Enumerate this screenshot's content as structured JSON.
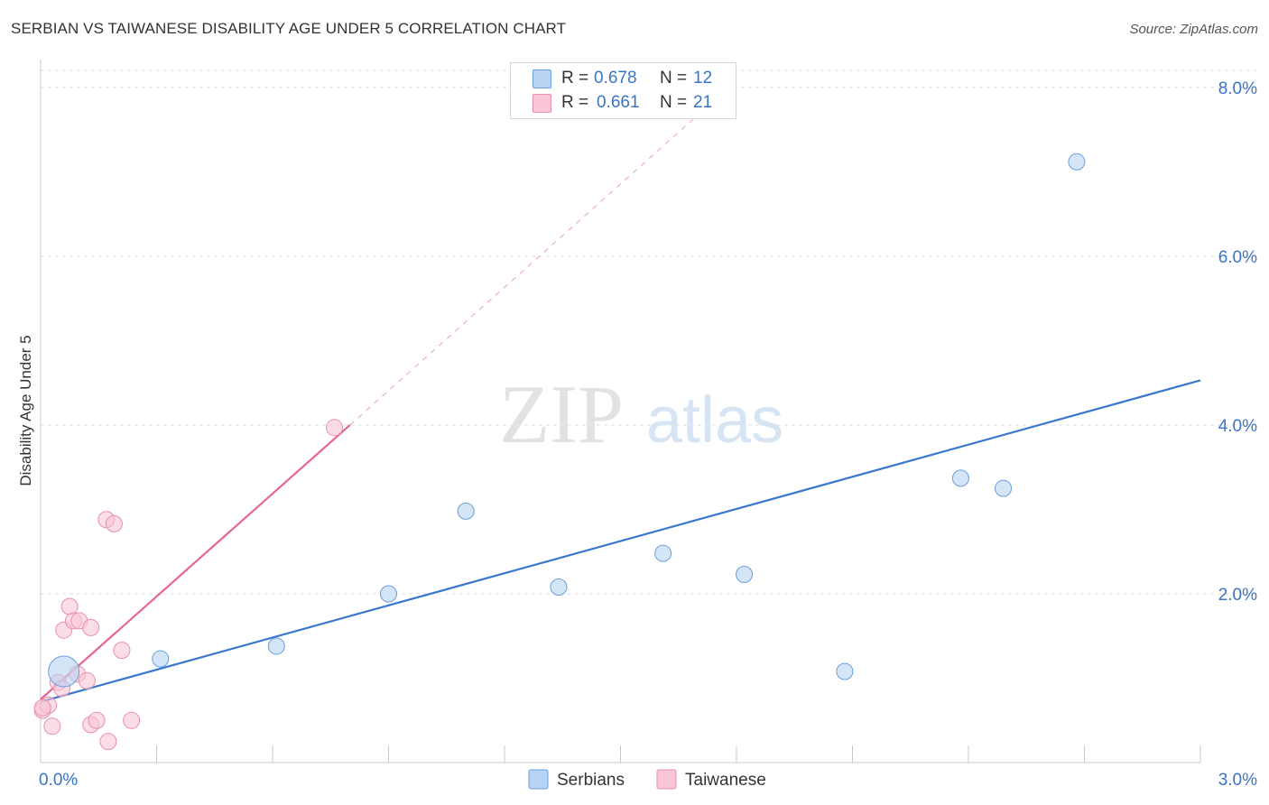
{
  "title": "SERBIAN VS TAIWANESE DISABILITY AGE UNDER 5 CORRELATION CHART",
  "source": "Source: ZipAtlas.com",
  "watermark": {
    "zip": "ZIP",
    "atlas": "atlas"
  },
  "legend_stats": [
    {
      "r_label": "R =",
      "r_value": "0.678",
      "n_label": "N =",
      "n_value": "12",
      "color": "#b8d3f3",
      "border": "#6a9fdb"
    },
    {
      "r_label": "R =",
      "r_value": "0.661",
      "n_label": "N =",
      "n_value": "21",
      "color": "#f9c6d6",
      "border": "#e890ac"
    }
  ],
  "chart_data": {
    "type": "scatter",
    "title": "SERBIAN VS TAIWANESE DISABILITY AGE UNDER 5 CORRELATION CHART",
    "xlabel": "",
    "ylabel": "Disability Age Under 5",
    "xlim": [
      0.0,
      3.0
    ],
    "ylim": [
      0.0,
      8.0
    ],
    "x_tick_labels": [
      "0.0%",
      "3.0%"
    ],
    "y_ticks": [
      {
        "value": 2.0,
        "label": "2.0%"
      },
      {
        "value": 4.0,
        "label": "4.0%"
      },
      {
        "value": 6.0,
        "label": "6.0%"
      },
      {
        "value": 8.0,
        "label": "8.0%"
      }
    ],
    "grid": true,
    "series": [
      {
        "name": "Serbians",
        "color": "#b8d3f3",
        "edge": "#6a9fdb",
        "line_color": "#3a78cd",
        "points": [
          {
            "x": 0.06,
            "y": 1.08,
            "size": 17
          },
          {
            "x": 0.31,
            "y": 1.23,
            "size": 9
          },
          {
            "x": 0.61,
            "y": 1.38,
            "size": 9
          },
          {
            "x": 0.9,
            "y": 2.0,
            "size": 9
          },
          {
            "x": 1.1,
            "y": 2.98,
            "size": 9
          },
          {
            "x": 1.34,
            "y": 2.08,
            "size": 9
          },
          {
            "x": 1.61,
            "y": 2.48,
            "size": 9
          },
          {
            "x": 1.82,
            "y": 2.23,
            "size": 9
          },
          {
            "x": 2.08,
            "y": 1.08,
            "size": 9
          },
          {
            "x": 2.38,
            "y": 3.37,
            "size": 9
          },
          {
            "x": 2.49,
            "y": 3.25,
            "size": 9
          },
          {
            "x": 2.68,
            "y": 7.12,
            "size": 9
          }
        ],
        "trend": {
          "x0": 0.0,
          "y0": 0.72,
          "x1": 3.0,
          "y1": 4.53
        }
      },
      {
        "name": "Taiwanese",
        "color": "#f9c6d6",
        "edge": "#e890ac",
        "line_color": "#e8668e",
        "points": [
          {
            "x": 0.005,
            "y": 0.62,
            "size": 9
          },
          {
            "x": 0.02,
            "y": 0.68,
            "size": 9
          },
          {
            "x": 0.03,
            "y": 0.43,
            "size": 9
          },
          {
            "x": 0.045,
            "y": 0.95,
            "size": 9
          },
          {
            "x": 0.055,
            "y": 0.88,
            "size": 9
          },
          {
            "x": 0.06,
            "y": 1.57,
            "size": 9
          },
          {
            "x": 0.075,
            "y": 1.85,
            "size": 9
          },
          {
            "x": 0.085,
            "y": 1.68,
            "size": 9
          },
          {
            "x": 0.095,
            "y": 1.05,
            "size": 9
          },
          {
            "x": 0.1,
            "y": 1.68,
            "size": 9
          },
          {
            "x": 0.12,
            "y": 0.97,
            "size": 9
          },
          {
            "x": 0.13,
            "y": 1.6,
            "size": 9
          },
          {
            "x": 0.13,
            "y": 0.45,
            "size": 9
          },
          {
            "x": 0.145,
            "y": 0.5,
            "size": 9
          },
          {
            "x": 0.17,
            "y": 2.88,
            "size": 9
          },
          {
            "x": 0.175,
            "y": 0.25,
            "size": 9
          },
          {
            "x": 0.19,
            "y": 2.83,
            "size": 9
          },
          {
            "x": 0.21,
            "y": 1.33,
            "size": 9
          },
          {
            "x": 0.235,
            "y": 0.5,
            "size": 9
          },
          {
            "x": 0.76,
            "y": 3.97,
            "size": 9
          },
          {
            "x": 0.005,
            "y": 0.65,
            "size": 9
          }
        ],
        "trend": {
          "x0": 0.0,
          "y0": 0.75,
          "x1": 0.8,
          "y1": 4.0
        },
        "trend_extension": {
          "x0": 0.8,
          "y0": 4.0,
          "x1": 1.78,
          "y1": 8.0
        }
      }
    ]
  },
  "bottom_legend": [
    {
      "label": "Serbians",
      "color": "#b8d3f3",
      "border": "#6a9fdb"
    },
    {
      "label": "Taiwanese",
      "color": "#f9c6d6",
      "border": "#e890ac"
    }
  ]
}
